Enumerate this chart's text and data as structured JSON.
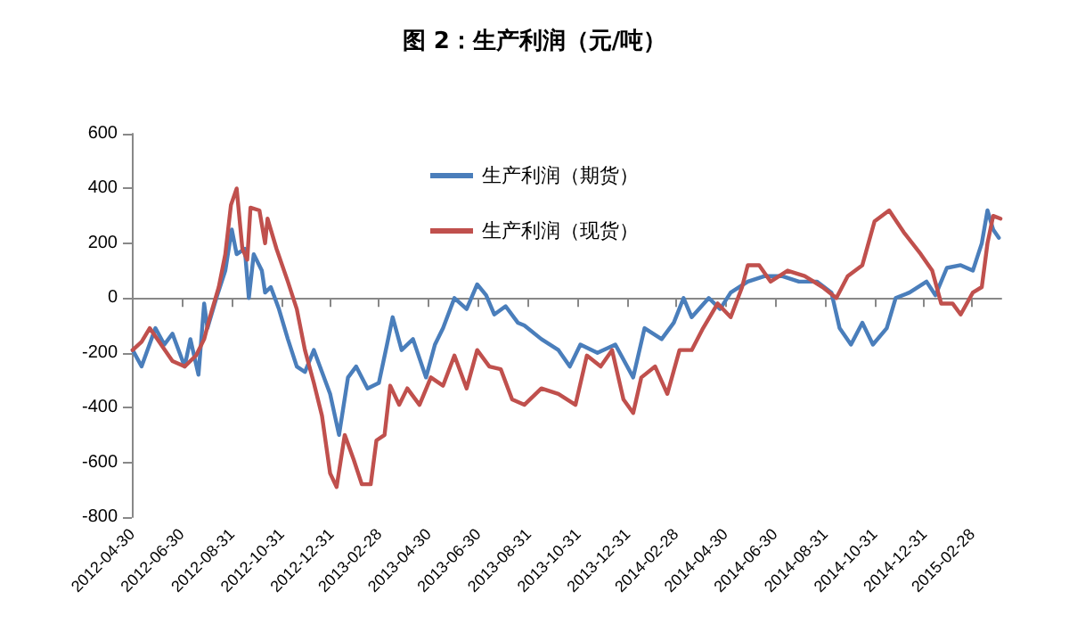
{
  "chart_data": {
    "type": "line",
    "title": "图 2：生产利润（元/吨）",
    "xlim": [
      "2012-04-30",
      "2015-04-05"
    ],
    "xticks": [
      "2012-04-30",
      "2012-06-30",
      "2012-08-31",
      "2012-10-31",
      "2012-12-31",
      "2013-02-28",
      "2013-04-30",
      "2013-06-30",
      "2013-08-31",
      "2013-10-31",
      "2013-12-31",
      "2014-02-28",
      "2014-04-30",
      "2014-06-30",
      "2014-08-31",
      "2014-10-31",
      "2014-12-31",
      "2015-02-28"
    ],
    "ylim": [
      -800,
      600
    ],
    "yticks": [
      -800,
      -600,
      -400,
      -200,
      0,
      200,
      400,
      600
    ],
    "legend": "top",
    "marker": "none",
    "line_style": "solid",
    "series": [
      {
        "name": "生产利润（期货）",
        "color": "#4a7ebb",
        "x": [
          "2012-05-01",
          "2012-05-12",
          "2012-05-29",
          "2012-06-09",
          "2012-06-19",
          "2012-07-04",
          "2012-07-11",
          "2012-07-21",
          "2012-07-28",
          "2012-08-01",
          "2012-08-12",
          "2012-08-23",
          "2012-08-31",
          "2012-09-06",
          "2012-09-16",
          "2012-09-21",
          "2012-09-27",
          "2012-10-07",
          "2012-10-11",
          "2012-10-18",
          "2012-10-28",
          "2012-11-08",
          "2012-11-19",
          "2012-11-29",
          "2012-12-10",
          "2012-12-20",
          "2012-12-30",
          "2013-01-10",
          "2013-01-21",
          "2013-01-31",
          "2013-02-14",
          "2013-02-28",
          "2013-03-10",
          "2013-03-17",
          "2013-03-28",
          "2013-04-11",
          "2013-04-27",
          "2013-05-08",
          "2013-05-18",
          "2013-06-01",
          "2013-06-16",
          "2013-06-29",
          "2013-07-10",
          "2013-07-20",
          "2013-08-03",
          "2013-08-18",
          "2013-08-26",
          "2013-09-16",
          "2013-10-07",
          "2013-10-21",
          "2013-11-03",
          "2013-11-24",
          "2013-12-16",
          "2014-01-07",
          "2014-01-21",
          "2014-02-11",
          "2014-02-26",
          "2014-03-10",
          "2014-03-20",
          "2014-04-10",
          "2014-04-24",
          "2014-05-07",
          "2014-05-28",
          "2014-06-18",
          "2014-07-09",
          "2014-07-30",
          "2014-08-21",
          "2014-09-08",
          "2014-09-18",
          "2014-10-02",
          "2014-10-16",
          "2014-10-29",
          "2014-11-15",
          "2014-11-26",
          "2014-12-13",
          "2015-01-03",
          "2015-01-14",
          "2015-01-28",
          "2015-02-14",
          "2015-03-01",
          "2015-03-12",
          "2015-03-19",
          "2015-03-26",
          "2015-04-02"
        ],
        "values": [
          -190,
          -250,
          -110,
          -170,
          -130,
          -250,
          -150,
          -280,
          -20,
          -110,
          0,
          100,
          250,
          160,
          180,
          0,
          160,
          100,
          20,
          40,
          -40,
          -150,
          -250,
          -270,
          -190,
          -270,
          -350,
          -500,
          -290,
          -250,
          -330,
          -310,
          -170,
          -70,
          -190,
          -150,
          -290,
          -170,
          -110,
          0,
          -40,
          50,
          10,
          -60,
          -30,
          -90,
          -100,
          -150,
          -190,
          -250,
          -170,
          -200,
          -170,
          -290,
          -110,
          -150,
          -90,
          0,
          -70,
          0,
          -40,
          20,
          60,
          80,
          80,
          60,
          60,
          20,
          -110,
          -170,
          -90,
          -170,
          -110,
          0,
          20,
          60,
          10,
          110,
          120,
          100,
          200,
          320,
          250,
          220
        ]
      },
      {
        "name": "生产利润（现货）",
        "color": "#c0504d",
        "x": [
          "2012-05-01",
          "2012-05-12",
          "2012-05-22",
          "2012-06-05",
          "2012-06-19",
          "2012-07-04",
          "2012-07-18",
          "2012-07-28",
          "2012-08-04",
          "2012-08-15",
          "2012-08-23",
          "2012-08-30",
          "2012-09-06",
          "2012-09-13",
          "2012-09-19",
          "2012-09-23",
          "2012-10-04",
          "2012-10-11",
          "2012-10-14",
          "2012-10-25",
          "2012-11-08",
          "2012-11-19",
          "2012-11-29",
          "2012-12-10",
          "2012-12-20",
          "2012-12-30",
          "2013-01-07",
          "2013-01-17",
          "2013-01-28",
          "2013-02-07",
          "2013-02-18",
          "2013-02-25",
          "2013-03-07",
          "2013-03-14",
          "2013-03-25",
          "2013-04-04",
          "2013-04-19",
          "2013-05-03",
          "2013-05-18",
          "2013-06-01",
          "2013-06-16",
          "2013-06-29",
          "2013-07-14",
          "2013-07-28",
          "2013-08-11",
          "2013-08-26",
          "2013-09-16",
          "2013-10-07",
          "2013-10-28",
          "2013-11-11",
          "2013-11-28",
          "2013-12-12",
          "2013-12-26",
          "2014-01-07",
          "2014-01-17",
          "2014-02-03",
          "2014-02-18",
          "2014-03-05",
          "2014-03-20",
          "2014-04-03",
          "2014-04-21",
          "2014-05-07",
          "2014-05-21",
          "2014-05-28",
          "2014-06-11",
          "2014-06-25",
          "2014-07-16",
          "2014-08-06",
          "2014-08-28",
          "2014-09-14",
          "2014-09-28",
          "2014-10-16",
          "2014-10-31",
          "2014-11-18",
          "2014-12-06",
          "2014-12-27",
          "2015-01-10",
          "2015-01-21",
          "2015-02-04",
          "2015-02-14",
          "2015-03-01",
          "2015-03-12",
          "2015-03-19",
          "2015-03-26",
          "2015-04-04"
        ],
        "values": [
          -190,
          -160,
          -110,
          -170,
          -230,
          -250,
          -210,
          -150,
          -70,
          40,
          160,
          340,
          400,
          180,
          140,
          330,
          320,
          200,
          290,
          180,
          60,
          -40,
          -190,
          -310,
          -430,
          -640,
          -690,
          -500,
          -590,
          -680,
          -680,
          -520,
          -500,
          -320,
          -390,
          -330,
          -390,
          -290,
          -320,
          -210,
          -330,
          -190,
          -250,
          -260,
          -370,
          -390,
          -330,
          -350,
          -390,
          -210,
          -250,
          -190,
          -370,
          -420,
          -290,
          -250,
          -350,
          -190,
          -190,
          -110,
          -20,
          -70,
          40,
          120,
          120,
          60,
          100,
          80,
          40,
          0,
          80,
          120,
          280,
          320,
          240,
          160,
          100,
          -20,
          -20,
          -60,
          20,
          40,
          200,
          300,
          290
        ]
      }
    ]
  }
}
